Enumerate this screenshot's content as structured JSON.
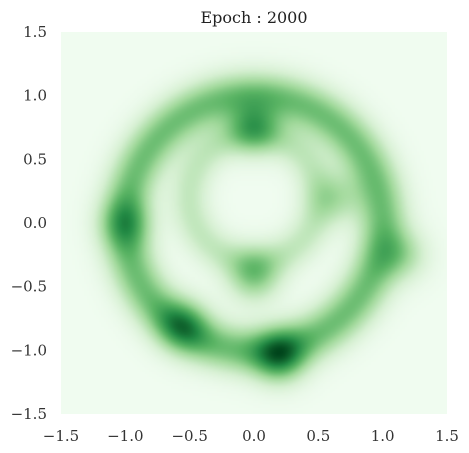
{
  "chart_data": {
    "type": "heatmap",
    "title": "Epoch : 2000",
    "xlabel": "",
    "ylabel": "",
    "xlim": [
      -1.5,
      1.5
    ],
    "ylim": [
      -1.5,
      1.5
    ],
    "grid": false,
    "colormap": "Greens",
    "background_color": "#f0fcf0",
    "x_ticks": [
      -1.5,
      -1.0,
      -0.5,
      0.0,
      0.5,
      1.0,
      1.5
    ],
    "y_ticks": [
      1.5,
      1.0,
      0.5,
      0.0,
      -0.5,
      -1.0,
      -1.5
    ],
    "x_tick_labels": [
      "−1.5",
      "−1.0",
      "−0.5",
      "0.0",
      "0.5",
      "1.0",
      "1.5"
    ],
    "y_tick_labels": [
      "1.5",
      "1.0",
      "0.5",
      "0.0",
      "−0.5",
      "−1.0",
      "−1.5"
    ],
    "density_structure": {
      "outer_ring": {
        "center": [
          0.0,
          0.0
        ],
        "radius": 1.0,
        "intensity": 0.55
      },
      "inner_ring": {
        "center": [
          0.0,
          0.2
        ],
        "radius": 0.5,
        "intensity": 0.25
      },
      "peaks": [
        {
          "x": 0.2,
          "y": -1.05,
          "intensity": 1.0
        },
        {
          "x": -0.55,
          "y": -0.8,
          "intensity": 0.75
        },
        {
          "x": 0.0,
          "y": 0.75,
          "intensity": 0.8
        },
        {
          "x": 0.0,
          "y": -0.42,
          "intensity": 0.7
        },
        {
          "x": -1.0,
          "y": 0.0,
          "intensity": 0.55
        },
        {
          "x": 1.15,
          "y": -0.25,
          "intensity": 0.5
        },
        {
          "x": 0.65,
          "y": 0.2,
          "intensity": 0.45
        }
      ]
    }
  }
}
